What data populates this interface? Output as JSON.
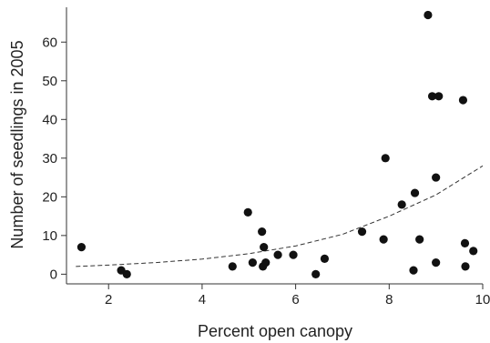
{
  "chart_data": {
    "type": "scatter",
    "xlabel": "Percent open canopy",
    "ylabel": "Number of seedlings in 2005",
    "xlim": [
      1.1,
      10.0
    ],
    "ylim": [
      -2.5,
      69
    ],
    "xticks": [
      2,
      4,
      6,
      8,
      10
    ],
    "xtick_labels": [
      "2",
      "4",
      "6",
      "8",
      "10"
    ],
    "yticks": [
      0,
      10,
      20,
      30,
      40,
      50,
      60
    ],
    "ytick_labels": [
      "0",
      "10",
      "20",
      "30",
      "40",
      "50",
      "60"
    ],
    "grid": false,
    "series": [
      {
        "kind": "points",
        "color": "#111111",
        "points": [
          {
            "x": 1.42,
            "y": 7
          },
          {
            "x": 2.27,
            "y": 1
          },
          {
            "x": 2.39,
            "y": 0
          },
          {
            "x": 4.65,
            "y": 2
          },
          {
            "x": 4.98,
            "y": 16
          },
          {
            "x": 5.08,
            "y": 3
          },
          {
            "x": 5.28,
            "y": 11
          },
          {
            "x": 5.3,
            "y": 2
          },
          {
            "x": 5.32,
            "y": 7
          },
          {
            "x": 5.36,
            "y": 3
          },
          {
            "x": 5.62,
            "y": 5
          },
          {
            "x": 5.95,
            "y": 5
          },
          {
            "x": 6.43,
            "y": 0
          },
          {
            "x": 6.62,
            "y": 4
          },
          {
            "x": 7.42,
            "y": 11
          },
          {
            "x": 7.88,
            "y": 9
          },
          {
            "x": 7.92,
            "y": 30
          },
          {
            "x": 8.27,
            "y": 18
          },
          {
            "x": 8.52,
            "y": 1
          },
          {
            "x": 8.55,
            "y": 21
          },
          {
            "x": 8.65,
            "y": 9
          },
          {
            "x": 8.83,
            "y": 67
          },
          {
            "x": 8.92,
            "y": 46
          },
          {
            "x": 9.0,
            "y": 25
          },
          {
            "x": 9.0,
            "y": 3
          },
          {
            "x": 9.06,
            "y": 46
          },
          {
            "x": 9.58,
            "y": 45
          },
          {
            "x": 9.62,
            "y": 8
          },
          {
            "x": 9.63,
            "y": 2
          },
          {
            "x": 9.8,
            "y": 6
          }
        ]
      },
      {
        "kind": "fit-curve",
        "style": "dashed",
        "color": "#333333",
        "points": [
          {
            "x": 1.3,
            "y": 2.0
          },
          {
            "x": 2.0,
            "y": 2.35
          },
          {
            "x": 3.0,
            "y": 3.0
          },
          {
            "x": 4.0,
            "y": 3.9
          },
          {
            "x": 5.0,
            "y": 5.3
          },
          {
            "x": 6.0,
            "y": 7.3
          },
          {
            "x": 7.0,
            "y": 10.3
          },
          {
            "x": 8.0,
            "y": 15.0
          },
          {
            "x": 9.0,
            "y": 20.5
          },
          {
            "x": 10.0,
            "y": 28.0
          }
        ]
      }
    ]
  }
}
